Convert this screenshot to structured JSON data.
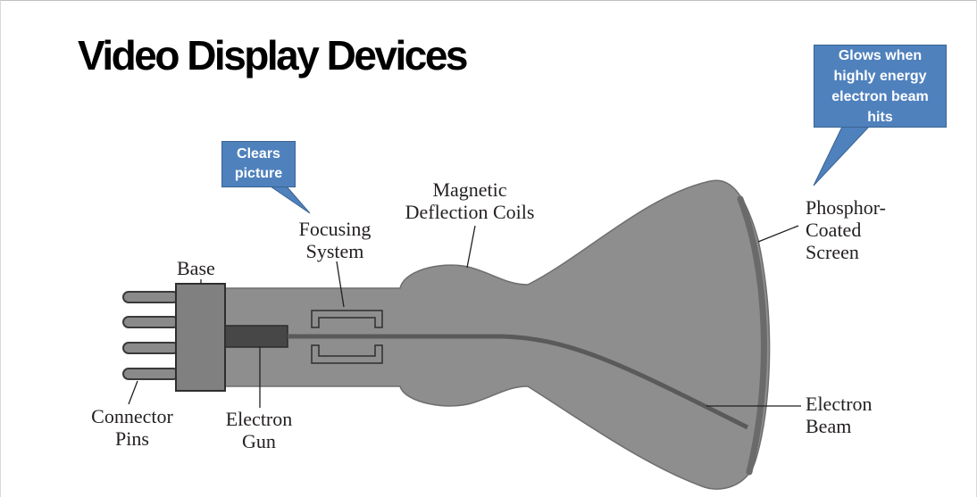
{
  "slide": {
    "title": "Video Display Devices"
  },
  "callouts": {
    "clears": {
      "line1": "Clears",
      "line2": "picture"
    },
    "glows": {
      "line1": "Glows when",
      "line2": "highly energy",
      "line3": "electron beam",
      "line4": "hits"
    }
  },
  "labels": {
    "base": "Base",
    "focusing": {
      "line1": "Focusing",
      "line2": "System"
    },
    "magnetic": {
      "line1": "Magnetic",
      "line2": "Deflection Coils"
    },
    "phosphor": {
      "line1": "Phosphor-",
      "line2": "Coated",
      "line3": "Screen"
    },
    "connector": {
      "line1": "Connector",
      "line2": "Pins"
    },
    "gun": {
      "line1": "Electron",
      "line2": "Gun"
    },
    "beam": {
      "line1": "Electron",
      "line2": "Beam"
    }
  },
  "colors": {
    "tube_fill": "#8e8e8e",
    "tube_edge": "#6e6e6e",
    "base_fill": "#808080",
    "gun_fill": "#474747",
    "beam": "#5a5a5a",
    "callout_fill": "#4f81bd"
  }
}
